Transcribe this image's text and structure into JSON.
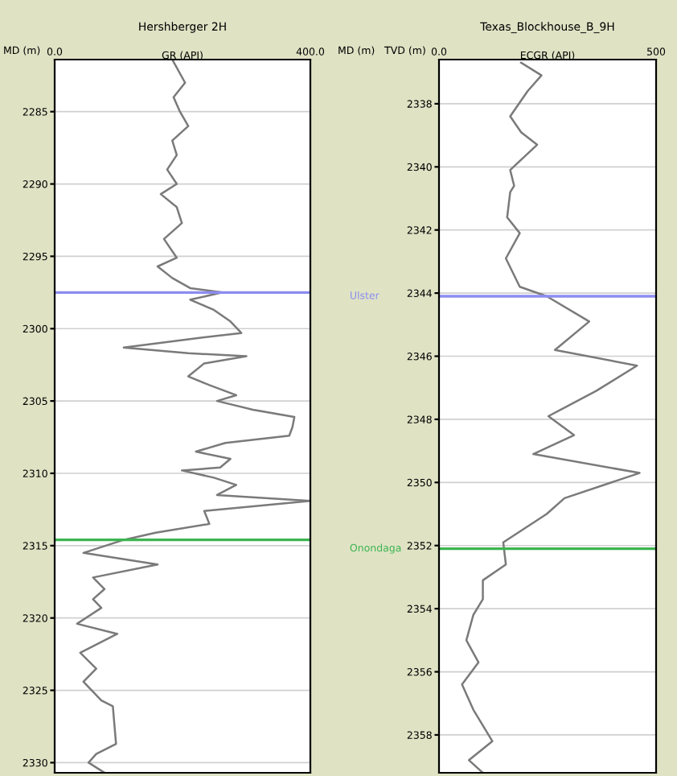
{
  "chart_data": [
    {
      "type": "line",
      "title": "Hershberger 2H",
      "xlabel": "GR (API)",
      "ylabel": "MD (m)",
      "grid": true,
      "legend": false,
      "xlim": [
        0,
        400
      ],
      "xticks": [
        {
          "value": 0,
          "label": "0.0"
        },
        {
          "value": 400,
          "label": "400.0"
        }
      ],
      "ylim": [
        2330.7,
        2281.4
      ],
      "yticks": [
        2285,
        2290,
        2295,
        2300,
        2305,
        2310,
        2315,
        2320,
        2325,
        2330
      ],
      "series": [
        {
          "color": "#7a7a7a",
          "x": [
            184,
            204,
            186,
            196,
            209,
            184,
            191,
            176,
            191,
            166,
            191,
            199,
            171,
            191,
            161,
            184,
            212,
            262,
            212,
            249,
            275,
            292,
            234,
            108,
            209,
            300,
            234,
            209,
            242,
            284,
            254,
            310,
            375,
            372,
            367,
            267,
            221,
            275,
            259,
            199,
            249,
            284,
            254,
            400,
            234,
            242,
            158,
            108,
            45,
            161,
            60,
            78,
            60,
            73,
            35,
            98,
            40,
            65,
            45,
            73,
            91,
            96,
            65,
            53,
            78
          ],
          "values": [
            2281.4,
            2283,
            2284,
            2285,
            2286,
            2287,
            2288,
            2289,
            2290,
            2290.7,
            2291.6,
            2292.7,
            2293.8,
            2295.1,
            2295.7,
            2296.5,
            2297.2,
            2297.5,
            2298.0,
            2298.7,
            2299.5,
            2300.3,
            2300.6,
            2301.3,
            2301.7,
            2301.9,
            2302.4,
            2303.3,
            2303.9,
            2304.6,
            2305.0,
            2305.6,
            2306.1,
            2306.8,
            2307.4,
            2307.9,
            2308.5,
            2309.0,
            2309.6,
            2309.8,
            2310.3,
            2310.8,
            2311.5,
            2311.9,
            2312.6,
            2313.5,
            2314.1,
            2314.6,
            2315.5,
            2316.3,
            2317.2,
            2318.0,
            2318.7,
            2319.3,
            2320.4,
            2321.1,
            2322.4,
            2323.5,
            2324.4,
            2325.7,
            2326.1,
            2328.7,
            2329.4,
            2330.0,
            2330.7
          ]
        }
      ],
      "ref_lines": [
        {
          "axis": "y",
          "value": 2297.5,
          "color": "#8c8cf0"
        },
        {
          "axis": "y",
          "value": 2314.6,
          "color": "#3cb450"
        }
      ]
    },
    {
      "type": "line",
      "title": "Texas_Blockhouse_B_9H",
      "xlabel": "ECGR (API)",
      "ylabel": "MD (m)",
      "grid": true,
      "legend": false,
      "annotations": [
        "TVD (m)"
      ],
      "xlim": [
        0,
        500
      ],
      "xticks": [
        {
          "value": 0,
          "label": "0.0"
        },
        {
          "value": 500,
          "label": "500"
        }
      ],
      "ylim": [
        2359.2,
        2336.6
      ],
      "yticks": [
        2338,
        2340,
        2342,
        2344,
        2346,
        2348,
        2350,
        2352,
        2354,
        2356,
        2358
      ],
      "series": [
        {
          "color": "#7a7a7a",
          "x": [
            189,
            236,
            204,
            164,
            189,
            226,
            164,
            173,
            164,
            157,
            186,
            154,
            186,
            248,
            346,
            267,
            456,
            362,
            252,
            311,
            217,
            462,
            289,
            248,
            148,
            154,
            101,
            101,
            79,
            63,
            91,
            53,
            79,
            123,
            69,
            101
          ],
          "values": [
            2336.7,
            2337.1,
            2337.6,
            2338.4,
            2338.9,
            2339.3,
            2340.1,
            2340.6,
            2340.8,
            2341.6,
            2342.1,
            2342.9,
            2343.8,
            2344.1,
            2344.9,
            2345.8,
            2346.3,
            2347.1,
            2347.9,
            2348.5,
            2349.1,
            2349.7,
            2350.5,
            2351.0,
            2351.9,
            2352.6,
            2353.1,
            2353.7,
            2354.2,
            2355.0,
            2355.7,
            2356.4,
            2357.2,
            2358.2,
            2358.8,
            2359.2
          ]
        }
      ],
      "ref_lines": [
        {
          "axis": "y",
          "value": 2344.1,
          "label": "Ulster",
          "color": "#8c8cf0"
        },
        {
          "axis": "y",
          "value": 2352.1,
          "label": "Onondaga",
          "color": "#3cb450"
        }
      ]
    }
  ]
}
